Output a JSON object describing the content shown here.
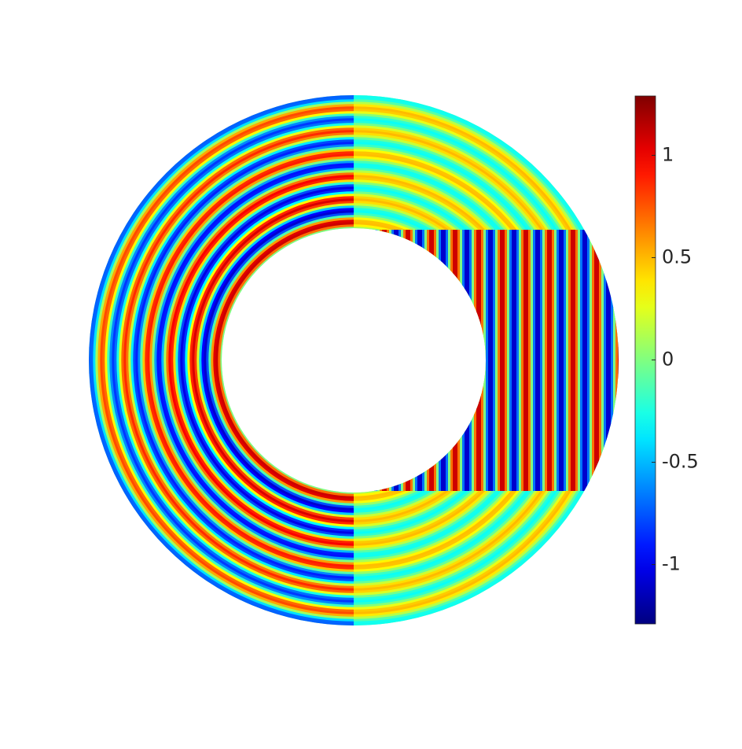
{
  "chart_data": {
    "type": "heatmap",
    "colormap": "jet",
    "clim": [
      -1.29,
      1.29
    ],
    "cticks": [
      -1,
      -0.5,
      0,
      0.5,
      1
    ]
  }
}
